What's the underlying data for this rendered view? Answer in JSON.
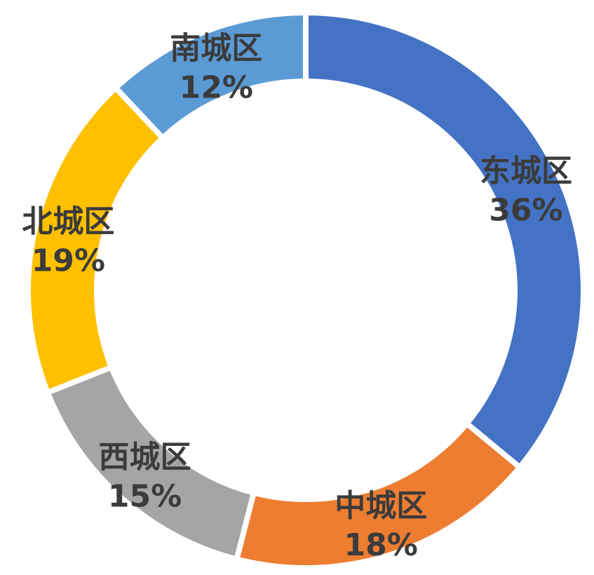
{
  "chart_data": {
    "type": "pie",
    "donut": true,
    "title": "",
    "legend": "none",
    "slices": [
      {
        "label": "东城区",
        "value": 36,
        "display": "36%",
        "color": "#4472C4"
      },
      {
        "label": "中城区",
        "value": 18,
        "display": "18%",
        "color": "#ED7D31"
      },
      {
        "label": "西城区",
        "value": 15,
        "display": "15%",
        "color": "#A5A5A5"
      },
      {
        "label": "北城区",
        "value": 19,
        "display": "19%",
        "color": "#FFC000"
      },
      {
        "label": "南城区",
        "value": 12,
        "display": "12%",
        "color": "#5B9BD5"
      }
    ]
  }
}
